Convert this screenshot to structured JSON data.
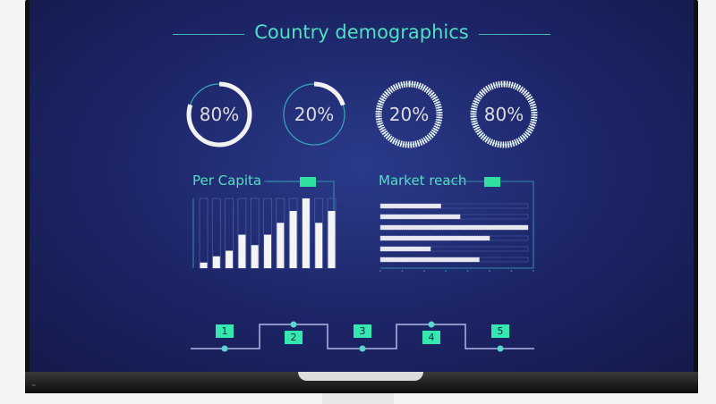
{
  "title": "Country demographics",
  "rings": [
    {
      "label": "80%",
      "value": 0.8,
      "style": "solid"
    },
    {
      "label": "20%",
      "value": 0.2,
      "style": "solid"
    },
    {
      "label": "20%",
      "value": 0.2,
      "style": "dashed"
    },
    {
      "label": "80%",
      "value": 0.8,
      "style": "dashed"
    }
  ],
  "chart_data": [
    {
      "type": "bar",
      "title": "Per Capita",
      "values": [
        8,
        17,
        25,
        48,
        33,
        48,
        65,
        82,
        100,
        65,
        82
      ],
      "ylim": [
        0,
        100
      ],
      "grid": false
    },
    {
      "type": "bar",
      "orientation": "horizontal",
      "title": "Market reach",
      "values": [
        0.41,
        0.54,
        1.0,
        0.74,
        0.34,
        0.67
      ],
      "xlim": [
        0,
        1
      ],
      "grid": false
    }
  ],
  "steps": [
    "1",
    "2",
    "3",
    "4",
    "5"
  ],
  "colors": {
    "accent": "#4fe0c0",
    "tag": "#2fe0a0",
    "background": "#1c2466"
  }
}
